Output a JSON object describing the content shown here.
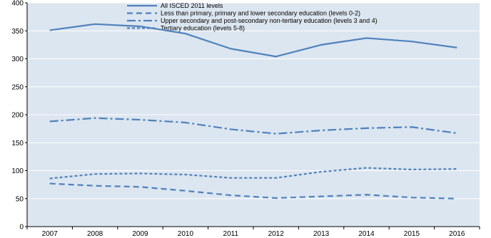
{
  "chart_data": {
    "type": "line",
    "x": [
      "2007",
      "2008",
      "2009",
      "2010",
      "2011",
      "2012",
      "2013",
      "2014",
      "2015",
      "2016"
    ],
    "ylim": [
      0,
      400
    ],
    "yticks": [
      0,
      50,
      100,
      150,
      200,
      250,
      300,
      350,
      400
    ],
    "grid": true,
    "legend_position": "top",
    "plot_background": "#dce6f0",
    "series": [
      {
        "name": "All ISCED 2011 levels",
        "color": "#4f81bd",
        "dash": "solid",
        "values": [
          351,
          362,
          358,
          345,
          318,
          304,
          325,
          337,
          331,
          320
        ]
      },
      {
        "name": "Less than primary, primary and lower secondary education (levels 0-2)",
        "color": "#4f81bd",
        "dash": "dashed",
        "values": [
          77,
          73,
          71,
          64,
          56,
          51,
          54,
          57,
          52,
          50
        ]
      },
      {
        "name": "Upper secondary and post-secondary non-tertiary education (levels 3 and 4)",
        "color": "#4f81bd",
        "dash": "dashdot",
        "values": [
          188,
          194,
          191,
          186,
          174,
          166,
          172,
          176,
          178,
          167
        ]
      },
      {
        "name": "Tertiary education (levels 5-8)",
        "color": "#4f81bd",
        "dash": "dotted",
        "values": [
          86,
          94,
          95,
          93,
          87,
          87,
          98,
          105,
          102,
          103
        ]
      }
    ]
  }
}
